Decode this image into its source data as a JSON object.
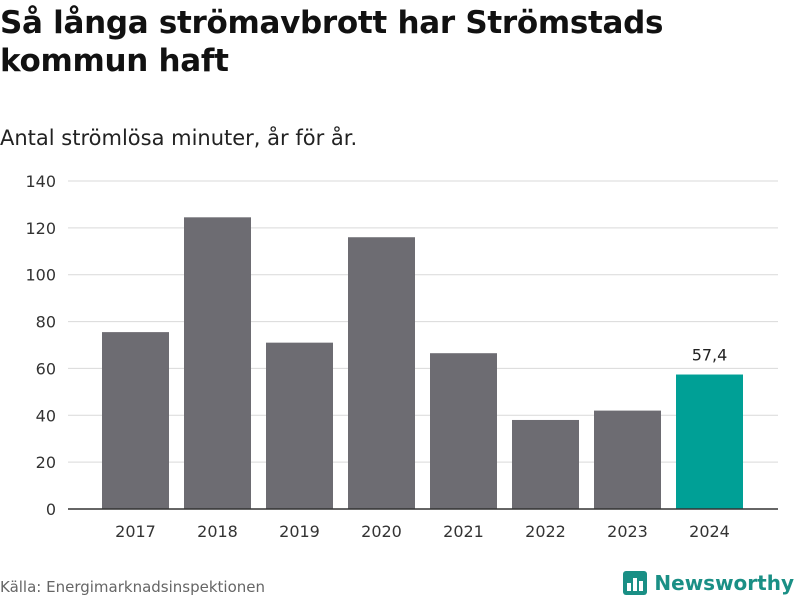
{
  "title": "Så långa strömavbrott har Strömstads kommun haft",
  "subtitle": "Antal strömlösa minuter, år för år.",
  "source": "Källa: Energimarknadsinspektionen",
  "brand": {
    "name": "Newsworthy",
    "icon": "newsworthy-logo-icon"
  },
  "colors": {
    "bar": "#6d6c72",
    "highlight": "#00a096",
    "grid": "#d9d9d9",
    "axis": "#333333",
    "brand": "#1a8f85"
  },
  "chart_data": {
    "type": "bar",
    "categories": [
      "2017",
      "2018",
      "2019",
      "2020",
      "2021",
      "2022",
      "2023",
      "2024"
    ],
    "values": [
      75.5,
      124.5,
      71,
      116,
      66.5,
      38,
      42,
      57.4
    ],
    "highlight_index": 7,
    "data_labels": [
      {
        "index": 7,
        "text": "57,4"
      }
    ],
    "ylim": [
      0,
      140
    ],
    "yticks": [
      0,
      20,
      40,
      60,
      80,
      100,
      120,
      140
    ],
    "xlabel": "",
    "ylabel": "",
    "grid": true
  }
}
